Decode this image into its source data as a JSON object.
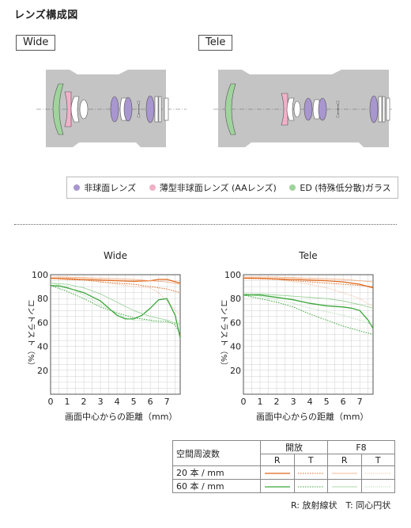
{
  "title": "レンズ構成図",
  "wide_label": "Wide",
  "tele_label": "Tele",
  "legend": [
    {
      "label": "非球面レンズ",
      "color": "#a896cf"
    },
    {
      "label": "薄型非球面レンズ (AAレンズ)",
      "color": "#f2b0c8"
    },
    {
      "label": "ED (特殊低分散)ガラス",
      "color": "#9fd49c"
    }
  ],
  "colors": {
    "orange": "#e0661a",
    "green": "#3aa63a",
    "body_gray": "#c4c4c4"
  },
  "mtf_common": {
    "xlabel": "画面中心からの距離（mm）",
    "ylabel": "コントラスト（%）",
    "xticks": [
      0,
      1,
      2,
      3,
      4,
      5,
      6,
      7
    ],
    "yticks": [
      20,
      40,
      60,
      80,
      100
    ],
    "xlim": [
      0,
      7.8
    ],
    "ylim": [
      0,
      100
    ]
  },
  "chart_data": [
    {
      "type": "line",
      "title": "Wide",
      "xlabel": "画面中心からの距離（mm）",
      "ylabel": "コントラスト（%）",
      "xlim": [
        0,
        7.8
      ],
      "ylim": [
        0,
        100
      ],
      "grid": true,
      "series": [
        {
          "name": "20本/mm 開放 R",
          "x": [
            0,
            1,
            2,
            3,
            4,
            5,
            6,
            6.5,
            7,
            7.8
          ],
          "y": [
            97,
            96.5,
            96,
            95.5,
            95,
            94.5,
            95,
            96,
            96,
            93
          ]
        },
        {
          "name": "20本/mm 開放 T",
          "x": [
            0,
            1,
            2,
            3,
            4,
            5,
            6,
            6.5,
            7,
            7.8
          ],
          "y": [
            97,
            96,
            95.5,
            94,
            93,
            92,
            90,
            89,
            88,
            85
          ]
        },
        {
          "name": "20本/mm F8 R",
          "x": [
            0,
            1,
            2,
            3,
            4,
            5,
            6,
            7,
            7.8
          ],
          "y": [
            98,
            98,
            97.5,
            97,
            96.5,
            96,
            95,
            94,
            92
          ]
        },
        {
          "name": "20本/mm F8 T",
          "x": [
            0,
            1,
            2,
            3,
            4,
            5,
            6,
            6.5,
            7,
            7.8
          ],
          "y": [
            98,
            97.5,
            96,
            94,
            92,
            90,
            89,
            85,
            78,
            66
          ]
        },
        {
          "name": "60本/mm 開放 R",
          "x": [
            0,
            0.5,
            1,
            2,
            3,
            3.5,
            4,
            4.5,
            5,
            5.5,
            6,
            6.5,
            7,
            7.5,
            7.8
          ],
          "y": [
            91,
            90.5,
            89,
            85,
            78,
            72,
            66,
            63,
            63,
            66,
            72,
            79,
            80,
            66,
            47
          ]
        },
        {
          "name": "60本/mm 開放 T",
          "x": [
            0,
            1,
            2,
            3,
            4,
            5,
            6,
            6.5,
            7,
            7.5,
            7.8
          ],
          "y": [
            91,
            86,
            80,
            73,
            68,
            64,
            62,
            61,
            61,
            58,
            50
          ]
        },
        {
          "name": "60本/mm F8 R",
          "x": [
            0,
            1,
            2,
            3,
            4,
            5,
            6,
            7,
            7.8
          ],
          "y": [
            93,
            92,
            89,
            84,
            77,
            70,
            65,
            62,
            58
          ]
        },
        {
          "name": "60本/mm F8 T",
          "x": [
            0,
            1,
            2,
            3,
            4,
            4.5,
            5,
            5.5,
            6,
            6.5,
            7,
            7.5,
            7.8
          ],
          "y": [
            93,
            90,
            83,
            75,
            68,
            64,
            62,
            62,
            61,
            60,
            60,
            59,
            59
          ]
        }
      ]
    },
    {
      "type": "line",
      "title": "Tele",
      "xlabel": "画面中心からの距離（mm）",
      "ylabel": "コントラスト（%）",
      "xlim": [
        0,
        7.8
      ],
      "ylim": [
        0,
        100
      ],
      "grid": true,
      "series": [
        {
          "name": "20本/mm 開放 R",
          "x": [
            0,
            1,
            2,
            3,
            4,
            5,
            6,
            7,
            7.8
          ],
          "y": [
            97,
            97,
            96.5,
            96,
            95.5,
            95,
            94,
            92,
            89
          ]
        },
        {
          "name": "20本/mm 開放 T",
          "x": [
            0,
            1,
            2,
            3,
            4,
            5,
            6,
            7,
            7.8
          ],
          "y": [
            97,
            96.5,
            96,
            95,
            94,
            93,
            92,
            91,
            90
          ]
        },
        {
          "name": "20本/mm F8 R",
          "x": [
            0,
            1,
            2,
            3,
            4,
            5,
            6,
            7,
            7.8
          ],
          "y": [
            98,
            98,
            98,
            97.5,
            97,
            96.5,
            96,
            95,
            94
          ]
        },
        {
          "name": "20本/mm F8 T",
          "x": [
            0,
            1,
            2,
            3,
            4,
            5,
            6,
            7,
            7.8
          ],
          "y": [
            98,
            97,
            96,
            94,
            92,
            89,
            85,
            80,
            73
          ]
        },
        {
          "name": "60本/mm 開放 R",
          "x": [
            0,
            1,
            2,
            3,
            4,
            5,
            6,
            6.5,
            7,
            7.5,
            7.8
          ],
          "y": [
            83,
            83,
            81,
            79,
            76,
            74,
            73,
            72,
            70,
            62,
            55
          ]
        },
        {
          "name": "60本/mm 開放 T",
          "x": [
            0,
            1,
            2,
            3,
            4,
            5,
            6,
            7,
            7.8
          ],
          "y": [
            83,
            80,
            77,
            73,
            67,
            62,
            57,
            53,
            50
          ]
        },
        {
          "name": "60本/mm F8 R",
          "x": [
            0,
            1,
            2,
            3,
            4,
            5,
            6,
            7,
            7.8
          ],
          "y": [
            84,
            84,
            83,
            82,
            81,
            80,
            78,
            75,
            72
          ]
        },
        {
          "name": "60本/mm F8 T",
          "x": [
            0,
            1,
            2,
            3,
            4,
            5,
            6,
            7,
            7.8
          ],
          "y": [
            84,
            82,
            79,
            76,
            72,
            69,
            66,
            62,
            58
          ]
        }
      ]
    }
  ],
  "table": {
    "header": "空間周波数",
    "group_open": "開放",
    "group_f8": "F8",
    "sub_r": "R",
    "sub_t": "T",
    "row1": "20 本 / mm",
    "row2": "60 本 / mm"
  },
  "note": "R: 放射線状　T: 同心円状"
}
